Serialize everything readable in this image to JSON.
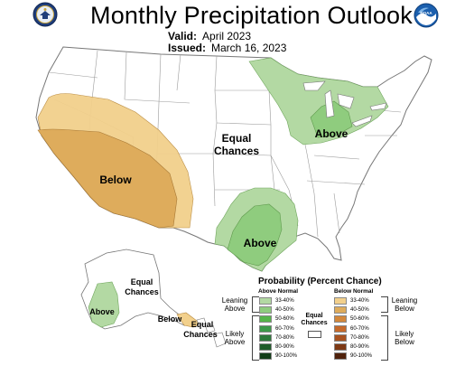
{
  "header": {
    "title": "Monthly Precipitation Outlook",
    "valid_label": "Valid:",
    "valid_value": "April 2023",
    "issued_label": "Issued:",
    "issued_value": "March 16, 2023"
  },
  "logos": {
    "left": "commerce-seal",
    "right": "noaa-logo",
    "right_text": "NOAA"
  },
  "map_labels": {
    "conus_below": "Below",
    "conus_equal_1": "Equal",
    "conus_equal_2": "Chances",
    "great_lakes_above": "Above",
    "gulf_above": "Above",
    "alaska_equal_1": "Equal",
    "alaska_equal_2": "Chances",
    "alaska_above": "Above",
    "alaska_below": "Below",
    "hawaii_equal_1": "Equal",
    "hawaii_equal_2": "Chances"
  },
  "legend": {
    "title": "Probability (Percent Chance)",
    "above_header": "Above Normal",
    "below_header": "Below Normal",
    "above_categories": [
      "33-40%",
      "40-50%",
      "50-60%",
      "60-70%",
      "70-80%",
      "80-90%",
      "90-100%"
    ],
    "below_categories": [
      "33-40%",
      "40-50%",
      "50-60%",
      "60-70%",
      "70-80%",
      "80-90%",
      "90-100%"
    ],
    "above_colors": [
      "#b3d9a3",
      "#8fcc7e",
      "#56b54a",
      "#3d9a4a",
      "#2d7a3b",
      "#1f5c2a",
      "#123d18"
    ],
    "below_colors": [
      "#f2d08c",
      "#deac5c",
      "#d3883c",
      "#c66a2b",
      "#a85220",
      "#7d3915",
      "#4f220c"
    ],
    "leaning_above_1": "Leaning",
    "leaning_above_2": "Above",
    "likely_above_1": "Likely",
    "likely_above_2": "Above",
    "leaning_below_1": "Leaning",
    "leaning_below_2": "Below",
    "likely_below_1": "Likely",
    "likely_below_2": "Below",
    "equal_1": "Equal",
    "equal_2": "Chances"
  },
  "colors": {
    "above_light": "#b3d9a3",
    "above_medium": "#8fcc7e",
    "below_light": "#f2d08c",
    "below_medium": "#deac5c"
  }
}
